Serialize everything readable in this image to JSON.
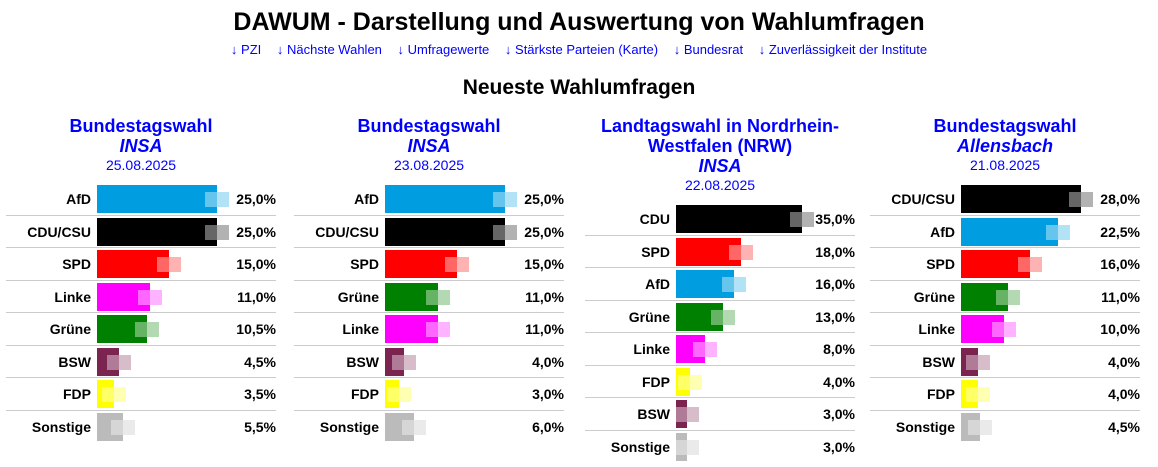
{
  "title": "DAWUM - Darstellung und Auswertung von Wahlumfragen",
  "nav": [
    "↓ PZI",
    "↓ Nächste Wahlen",
    "↓ Umfragewerte",
    "↓ Stärkste Parteien (Karte)",
    "↓ Bundesrat",
    "↓ Zuverlässigkeit der Institute"
  ],
  "section_title": "Neueste Wahlumfragen",
  "colors": {
    "AfD": "#009ee0",
    "CDU/CSU": "#000000",
    "CDU": "#000000",
    "SPD": "#ff0000",
    "Linke": "#ff00ff",
    "Grüne": "#008000",
    "BSW": "#7b2450",
    "FDP": "#ffff00",
    "Sonstige": "#bbbbbb"
  },
  "polls": [
    {
      "title": "Bundestagswahl",
      "institute": "INSA",
      "date": "25.08.2025",
      "rows": [
        {
          "party": "AfD",
          "value": 25.0,
          "label": "25,0%"
        },
        {
          "party": "CDU/CSU",
          "value": 25.0,
          "label": "25,0%"
        },
        {
          "party": "SPD",
          "value": 15.0,
          "label": "15,0%"
        },
        {
          "party": "Linke",
          "value": 11.0,
          "label": "11,0%"
        },
        {
          "party": "Grüne",
          "value": 10.5,
          "label": "10,5%"
        },
        {
          "party": "BSW",
          "value": 4.5,
          "label": "4,5%"
        },
        {
          "party": "FDP",
          "value": 3.5,
          "label": "3,5%"
        },
        {
          "party": "Sonstige",
          "value": 5.5,
          "label": "5,5%"
        }
      ]
    },
    {
      "title": "Bundestagswahl",
      "institute": "INSA",
      "date": "23.08.2025",
      "rows": [
        {
          "party": "AfD",
          "value": 25.0,
          "label": "25,0%"
        },
        {
          "party": "CDU/CSU",
          "value": 25.0,
          "label": "25,0%"
        },
        {
          "party": "SPD",
          "value": 15.0,
          "label": "15,0%"
        },
        {
          "party": "Grüne",
          "value": 11.0,
          "label": "11,0%"
        },
        {
          "party": "Linke",
          "value": 11.0,
          "label": "11,0%"
        },
        {
          "party": "BSW",
          "value": 4.0,
          "label": "4,0%"
        },
        {
          "party": "FDP",
          "value": 3.0,
          "label": "3,0%"
        },
        {
          "party": "Sonstige",
          "value": 6.0,
          "label": "6,0%"
        }
      ]
    },
    {
      "title": "Landtagswahl in Nordrhein-Westfalen (NRW)",
      "institute": "INSA",
      "date": "22.08.2025",
      "rows": [
        {
          "party": "CDU",
          "value": 35.0,
          "label": "35,0%"
        },
        {
          "party": "SPD",
          "value": 18.0,
          "label": "18,0%"
        },
        {
          "party": "AfD",
          "value": 16.0,
          "label": "16,0%"
        },
        {
          "party": "Grüne",
          "value": 13.0,
          "label": "13,0%"
        },
        {
          "party": "Linke",
          "value": 8.0,
          "label": "8,0%"
        },
        {
          "party": "FDP",
          "value": 4.0,
          "label": "4,0%"
        },
        {
          "party": "BSW",
          "value": 3.0,
          "label": "3,0%"
        },
        {
          "party": "Sonstige",
          "value": 3.0,
          "label": "3,0%"
        }
      ]
    },
    {
      "title": "Bundestagswahl",
      "institute": "Allensbach",
      "date": "21.08.2025",
      "rows": [
        {
          "party": "CDU/CSU",
          "value": 28.0,
          "label": "28,0%"
        },
        {
          "party": "AfD",
          "value": 22.5,
          "label": "22,5%"
        },
        {
          "party": "SPD",
          "value": 16.0,
          "label": "16,0%"
        },
        {
          "party": "Grüne",
          "value": 11.0,
          "label": "11,0%"
        },
        {
          "party": "Linke",
          "value": 10.0,
          "label": "10,0%"
        },
        {
          "party": "BSW",
          "value": 4.0,
          "label": "4,0%"
        },
        {
          "party": "FDP",
          "value": 4.0,
          "label": "4,0%"
        },
        {
          "party": "Sonstige",
          "value": 4.5,
          "label": "4,5%"
        }
      ]
    }
  ]
}
